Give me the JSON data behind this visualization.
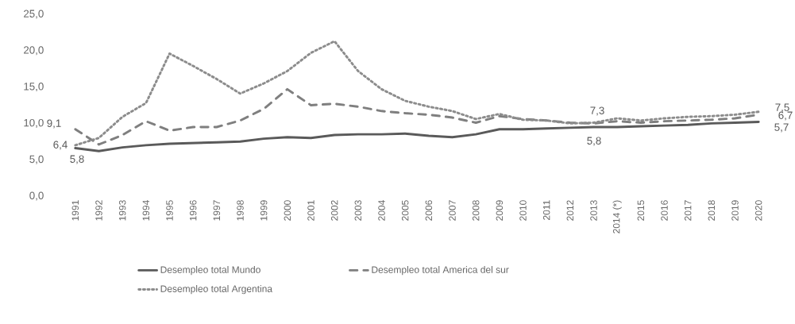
{
  "chart_data": {
    "type": "line",
    "categories": [
      "1991",
      "1992",
      "1993",
      "1994",
      "1995",
      "1996",
      "1997",
      "1998",
      "1999",
      "2000",
      "2001",
      "2002",
      "2003",
      "2004",
      "2005",
      "2006",
      "2007",
      "2008",
      "2009",
      "2010",
      "2011",
      "2012",
      "2013",
      "2014 (*)",
      "2015",
      "2016",
      "2017",
      "2018",
      "2019",
      "2020"
    ],
    "series": [
      {
        "name": "Desempleo total Mundo",
        "color": "#5a5a5a",
        "line_style": "solid",
        "values": [
          6.6,
          6.2,
          6.7,
          7.0,
          7.2,
          7.3,
          7.4,
          7.5,
          7.9,
          8.1,
          8.0,
          8.4,
          8.5,
          8.5,
          8.6,
          8.3,
          8.1,
          8.5,
          9.2,
          9.2,
          9.3,
          9.4,
          9.5,
          9.5,
          9.6,
          9.7,
          9.8,
          10.0,
          10.1,
          10.2
        ]
      },
      {
        "name": "Desempleo total America  del sur",
        "color": "#7f7f7f",
        "line_style": "dashed",
        "values": [
          9.2,
          7.1,
          8.4,
          10.3,
          9.0,
          9.5,
          9.5,
          10.4,
          12.0,
          14.7,
          12.5,
          12.7,
          12.3,
          11.7,
          11.4,
          11.2,
          10.8,
          10.1,
          11.0,
          10.6,
          10.4,
          10.1,
          10.0,
          10.3,
          10.1,
          10.3,
          10.4,
          10.5,
          10.7,
          11.2
        ]
      },
      {
        "name": "Desempleo total Argentina",
        "color": "#8c8c8c",
        "line_style": "dotted",
        "values": [
          7.0,
          8.0,
          10.9,
          12.8,
          19.6,
          17.9,
          16.1,
          14.1,
          15.5,
          17.2,
          19.7,
          21.3,
          17.2,
          14.7,
          13.1,
          12.3,
          11.7,
          10.6,
          11.3,
          10.5,
          10.4,
          10.0,
          10.1,
          10.7,
          10.4,
          10.7,
          10.9,
          11.0,
          11.2,
          11.6
        ]
      }
    ],
    "ylim": [
      0,
      25
    ],
    "yticks": [
      {
        "value": 0,
        "label": "0,0"
      },
      {
        "value": 5,
        "label": "5,0"
      },
      {
        "value": 10,
        "label": "10,0"
      },
      {
        "value": 15,
        "label": "15,0"
      },
      {
        "value": 20,
        "label": "20,0"
      },
      {
        "value": 25,
        "label": "25,0"
      }
    ],
    "annotations": [
      "9,1",
      "6,4",
      "5,8",
      "7,3",
      "5,8",
      "7,5",
      "6,7",
      "5,7"
    ],
    "grid": false,
    "legend": "bottom",
    "marker": "none"
  }
}
